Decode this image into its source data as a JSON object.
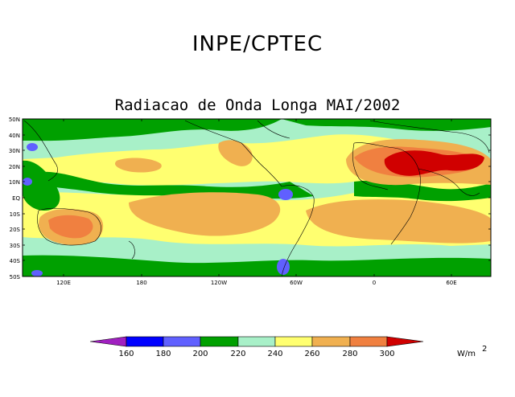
{
  "header": {
    "organization": "INPE/CPTEC",
    "map_title": "Radiacao de Onda Longa MAI/2002"
  },
  "map": {
    "lat_labels": [
      "50N",
      "40N",
      "30N",
      "20N",
      "10N",
      "EQ",
      "10S",
      "20S",
      "30S",
      "40S",
      "50S"
    ],
    "lon_labels": [
      "120E",
      "180",
      "120W",
      "60W",
      "0",
      "60E"
    ],
    "field": "Outgoing longwave radiation"
  },
  "colorbar": {
    "ticks": [
      "160",
      "180",
      "200",
      "220",
      "240",
      "260",
      "280",
      "300"
    ],
    "colors": [
      "#a020c0",
      "#0000ff",
      "#6060ff",
      "#00a000",
      "#a8f0c8",
      "#ffff70",
      "#f0b050",
      "#f08040",
      "#d00000"
    ],
    "units": "W/m",
    "units_exponent": "2"
  }
}
